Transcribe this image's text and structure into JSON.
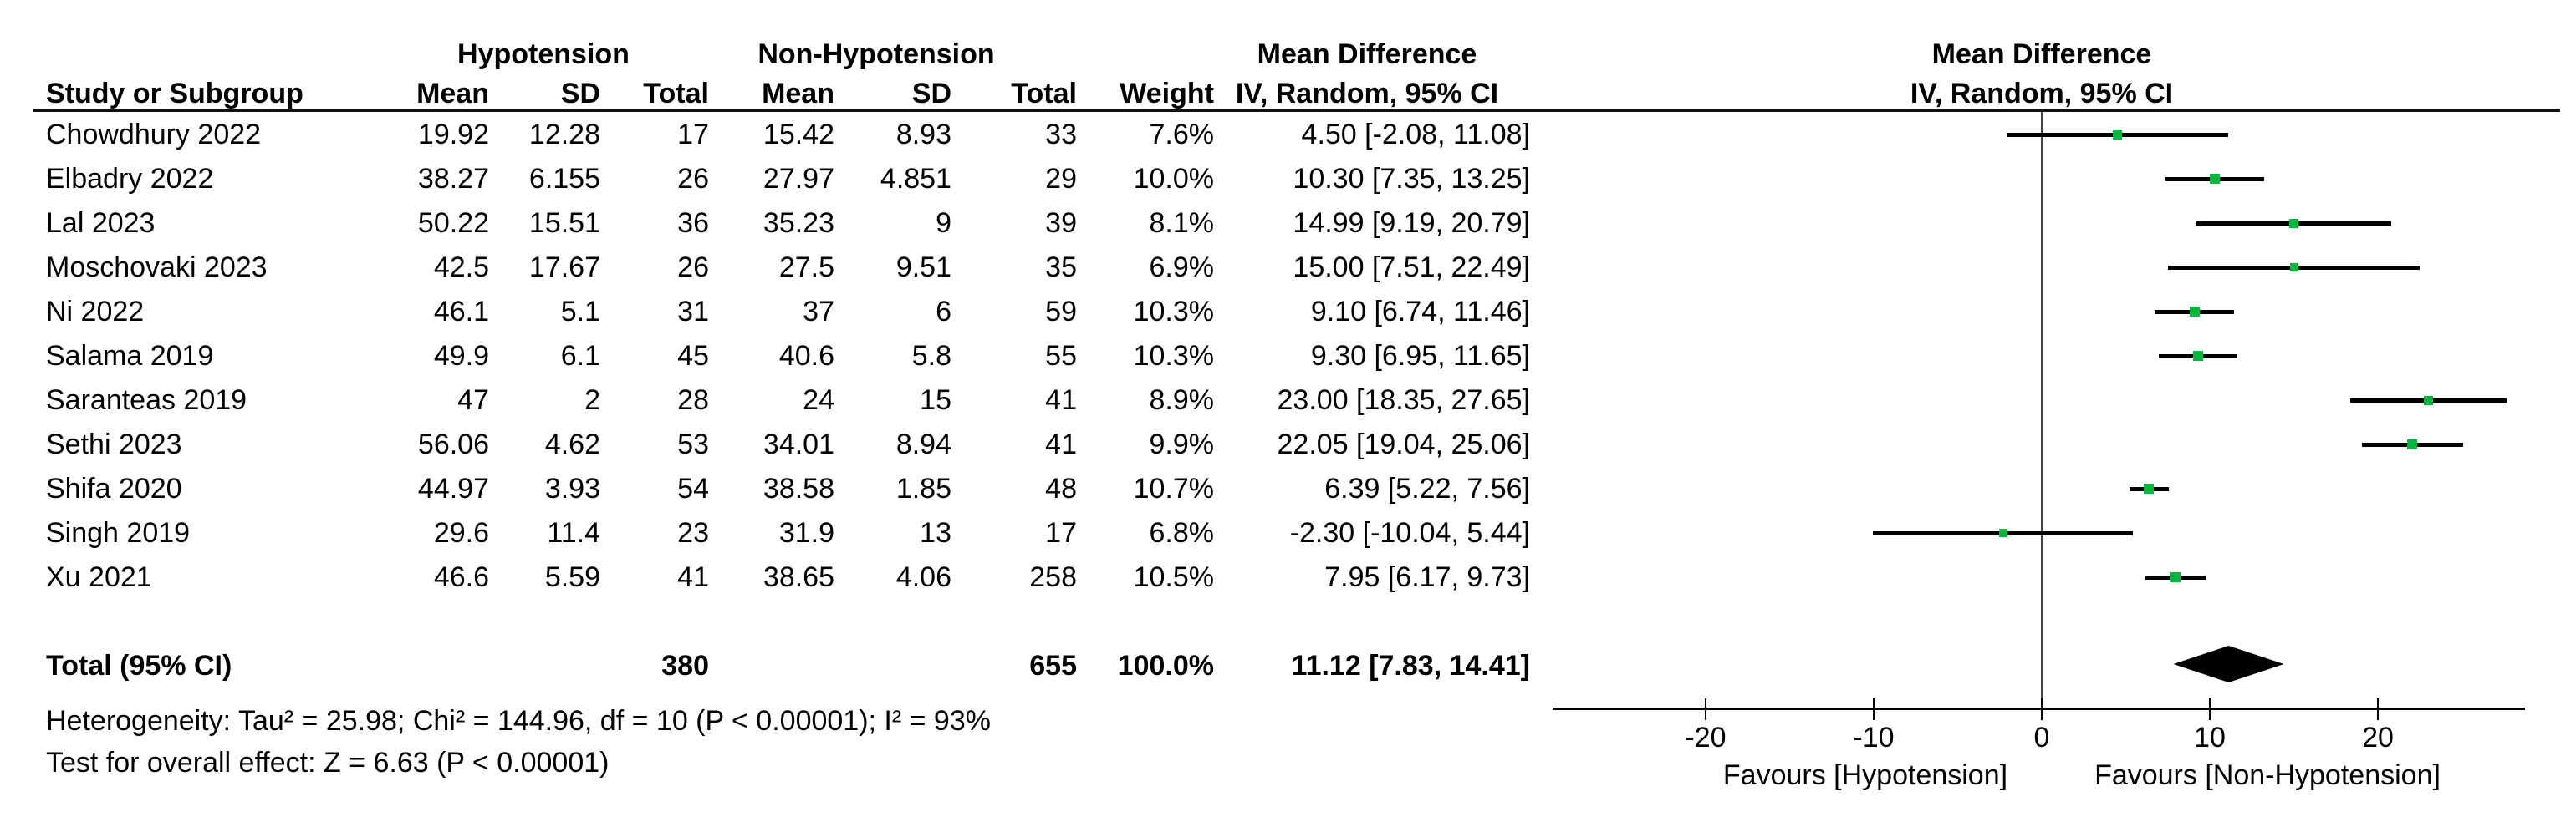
{
  "header": {
    "group1": "Hypotension",
    "group2": "Non-Hypotension",
    "col_study": "Study or Subgroup",
    "col_mean1": "Mean",
    "col_sd1": "SD",
    "col_total1": "Total",
    "col_mean2": "Mean",
    "col_sd2": "SD",
    "col_total2": "Total",
    "col_weight": "Weight",
    "col_md": "Mean Difference",
    "col_ci": "IV, Random, 95% CI",
    "plot_md": "Mean Difference",
    "plot_ci": "IV, Random, 95% CI"
  },
  "footnotes": {
    "heterogeneity": "Heterogeneity: Tau² = 25.98; Chi² = 144.96, df = 10 (P < 0.00001); I² = 93%",
    "overall_effect": "Test for overall effect: Z = 6.63 (P < 0.00001)"
  },
  "colors": {
    "marker_green": "#00b83c",
    "diamond_black": "#000000",
    "axis_black": "#000000"
  },
  "chart_data": {
    "type": "scatter",
    "subtype": "forest-plot",
    "effect_measure": "Mean Difference, IV, Random, 95% CI",
    "axis": {
      "ticks": [
        -20,
        -10,
        0,
        10,
        20
      ],
      "xlim": [
        -29,
        29
      ],
      "zero_line": 0,
      "favours_left": "Favours [Hypotension]",
      "favours_right": "Favours [Non-Hypotension]"
    },
    "studies": [
      {
        "name": "Chowdhury 2022",
        "mean1": "19.92",
        "sd1": "12.28",
        "total1": "17",
        "mean2": "15.42",
        "sd2": "8.93",
        "total2": "33",
        "weight": "7.6%",
        "ci": "4.50 [-2.08, 11.08]",
        "md": 4.5,
        "lo": -2.08,
        "hi": 11.08,
        "w": 7.6
      },
      {
        "name": "Elbadry 2022",
        "mean1": "38.27",
        "sd1": "6.155",
        "total1": "26",
        "mean2": "27.97",
        "sd2": "4.851",
        "total2": "29",
        "weight": "10.0%",
        "ci": "10.30 [7.35, 13.25]",
        "md": 10.3,
        "lo": 7.35,
        "hi": 13.25,
        "w": 10.0
      },
      {
        "name": "Lal 2023",
        "mean1": "50.22",
        "sd1": "15.51",
        "total1": "36",
        "mean2": "35.23",
        "sd2": "9",
        "total2": "39",
        "weight": "8.1%",
        "ci": "14.99 [9.19, 20.79]",
        "md": 14.99,
        "lo": 9.19,
        "hi": 20.79,
        "w": 8.1
      },
      {
        "name": "Moschovaki 2023",
        "mean1": "42.5",
        "sd1": "17.67",
        "total1": "26",
        "mean2": "27.5",
        "sd2": "9.51",
        "total2": "35",
        "weight": "6.9%",
        "ci": "15.00 [7.51, 22.49]",
        "md": 15.0,
        "lo": 7.51,
        "hi": 22.49,
        "w": 6.9
      },
      {
        "name": "Ni 2022",
        "mean1": "46.1",
        "sd1": "5.1",
        "total1": "31",
        "mean2": "37",
        "sd2": "6",
        "total2": "59",
        "weight": "10.3%",
        "ci": "9.10 [6.74, 11.46]",
        "md": 9.1,
        "lo": 6.74,
        "hi": 11.46,
        "w": 10.3
      },
      {
        "name": "Salama 2019",
        "mean1": "49.9",
        "sd1": "6.1",
        "total1": "45",
        "mean2": "40.6",
        "sd2": "5.8",
        "total2": "55",
        "weight": "10.3%",
        "ci": "9.30 [6.95, 11.65]",
        "md": 9.3,
        "lo": 6.95,
        "hi": 11.65,
        "w": 10.3
      },
      {
        "name": "Saranteas 2019",
        "mean1": "47",
        "sd1": "2",
        "total1": "28",
        "mean2": "24",
        "sd2": "15",
        "total2": "41",
        "weight": "8.9%",
        "ci": "23.00 [18.35, 27.65]",
        "md": 23.0,
        "lo": 18.35,
        "hi": 27.65,
        "w": 8.9
      },
      {
        "name": "Sethi 2023",
        "mean1": "56.06",
        "sd1": "4.62",
        "total1": "53",
        "mean2": "34.01",
        "sd2": "8.94",
        "total2": "41",
        "weight": "9.9%",
        "ci": "22.05 [19.04, 25.06]",
        "md": 22.05,
        "lo": 19.04,
        "hi": 25.06,
        "w": 9.9
      },
      {
        "name": "Shifa 2020",
        "mean1": "44.97",
        "sd1": "3.93",
        "total1": "54",
        "mean2": "38.58",
        "sd2": "1.85",
        "total2": "48",
        "weight": "10.7%",
        "ci": "6.39 [5.22, 7.56]",
        "md": 6.39,
        "lo": 5.22,
        "hi": 7.56,
        "w": 10.7
      },
      {
        "name": "Singh 2019",
        "mean1": "29.6",
        "sd1": "11.4",
        "total1": "23",
        "mean2": "31.9",
        "sd2": "13",
        "total2": "17",
        "weight": "6.8%",
        "ci": "-2.30 [-10.04, 5.44]",
        "md": -2.3,
        "lo": -10.04,
        "hi": 5.44,
        "w": 6.8
      },
      {
        "name": "Xu 2021",
        "mean1": "46.6",
        "sd1": "5.59",
        "total1": "41",
        "mean2": "38.65",
        "sd2": "4.06",
        "total2": "258",
        "weight": "10.5%",
        "ci": "7.95 [6.17, 9.73]",
        "md": 7.95,
        "lo": 6.17,
        "hi": 9.73,
        "w": 10.5
      }
    ],
    "total": {
      "label": "Total (95% CI)",
      "total1": "380",
      "total2": "655",
      "weight": "100.0%",
      "ci": "11.12 [7.83, 14.41]",
      "md": 11.12,
      "lo": 7.83,
      "hi": 14.41
    }
  }
}
